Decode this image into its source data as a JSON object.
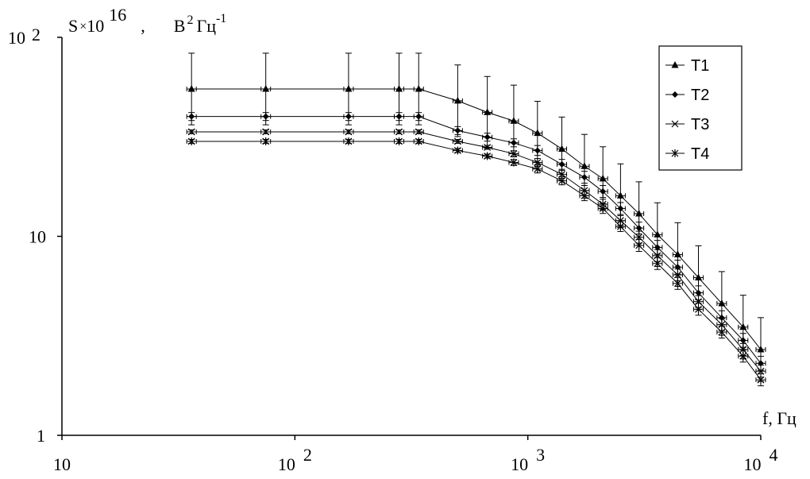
{
  "chart_data": {
    "type": "line",
    "scale": {
      "x": "log",
      "y": "log"
    },
    "xlim": [
      10,
      10000
    ],
    "ylim": [
      1,
      100
    ],
    "x_ticks": [
      {
        "base": "10",
        "exp": ""
      },
      {
        "base": "10",
        "exp": "2"
      },
      {
        "base": "10",
        "exp": "3"
      },
      {
        "base": "10",
        "exp": "4"
      }
    ],
    "y_ticks": [
      {
        "base": "1",
        "exp": ""
      },
      {
        "base": "10",
        "exp": ""
      },
      {
        "base": "10",
        "exp": "2"
      }
    ],
    "xlabel": "f, Гц",
    "ylabel": {
      "part1": "S",
      "times": "×",
      "part2": "10",
      "part2_exp": "16",
      "separator": ",",
      "unit1": "В",
      "unit1_exp": "2",
      "unit2": "Гц",
      "unit2_exp": "-1"
    },
    "legend_position": "top-right",
    "grid": false,
    "error_bars": true,
    "x": [
      36,
      75,
      170,
      280,
      340,
      500,
      670,
      870,
      1100,
      1400,
      1750,
      2100,
      2500,
      3000,
      3600,
      4400,
      5400,
      6800,
      8400,
      10000
    ],
    "series": [
      {
        "name": "T1",
        "marker": "triangle",
        "values": [
          55,
          55,
          55,
          55,
          55,
          48,
          42,
          38,
          33,
          27.5,
          22.5,
          19.5,
          16,
          13,
          10.2,
          8.1,
          6.2,
          4.6,
          3.5,
          2.7
        ],
        "err": [
          0.18,
          0.18,
          0.18,
          0.18,
          0.18,
          0.18,
          0.18,
          0.18,
          0.16,
          0.16,
          0.16,
          0.16,
          0.16,
          0.16,
          0.16,
          0.16,
          0.16,
          0.16,
          0.16,
          0.16
        ]
      },
      {
        "name": "T2",
        "marker": "diamond",
        "values": [
          40,
          40,
          40,
          40,
          40,
          34,
          31.5,
          29.5,
          27,
          23,
          19.8,
          16.8,
          13.8,
          11,
          8.8,
          7,
          5.2,
          3.9,
          3,
          2.3
        ],
        "err": [
          0.02,
          0.02,
          0.02,
          0.02,
          0.02,
          0.02,
          0.02,
          0.02,
          0.025,
          0.025,
          0.03,
          0.03,
          0.03,
          0.03,
          0.035,
          0.035,
          0.035,
          0.035,
          0.035,
          0.035
        ]
      },
      {
        "name": "T3",
        "marker": "x",
        "values": [
          33.5,
          33.5,
          33.5,
          33.5,
          33.5,
          30,
          28,
          26,
          23.5,
          20.5,
          17,
          14.5,
          12,
          9.9,
          8,
          6.4,
          4.7,
          3.6,
          2.7,
          2.1
        ],
        "err": [
          0.01,
          0.01,
          0.01,
          0.01,
          0.01,
          0.01,
          0.01,
          0.015,
          0.02,
          0.02,
          0.025,
          0.025,
          0.025,
          0.03,
          0.03,
          0.03,
          0.03,
          0.03,
          0.03,
          0.03
        ]
      },
      {
        "name": "T4",
        "marker": "star",
        "values": [
          30,
          30,
          30,
          30,
          30,
          27,
          25.3,
          23.5,
          21.8,
          19,
          16,
          13.8,
          11.2,
          9,
          7.3,
          5.8,
          4.3,
          3.3,
          2.5,
          1.9
        ],
        "err": [
          0.01,
          0.01,
          0.01,
          0.01,
          0.01,
          0.01,
          0.01,
          0.015,
          0.02,
          0.02,
          0.025,
          0.025,
          0.025,
          0.03,
          0.03,
          0.03,
          0.03,
          0.03,
          0.03,
          0.03
        ]
      }
    ]
  }
}
